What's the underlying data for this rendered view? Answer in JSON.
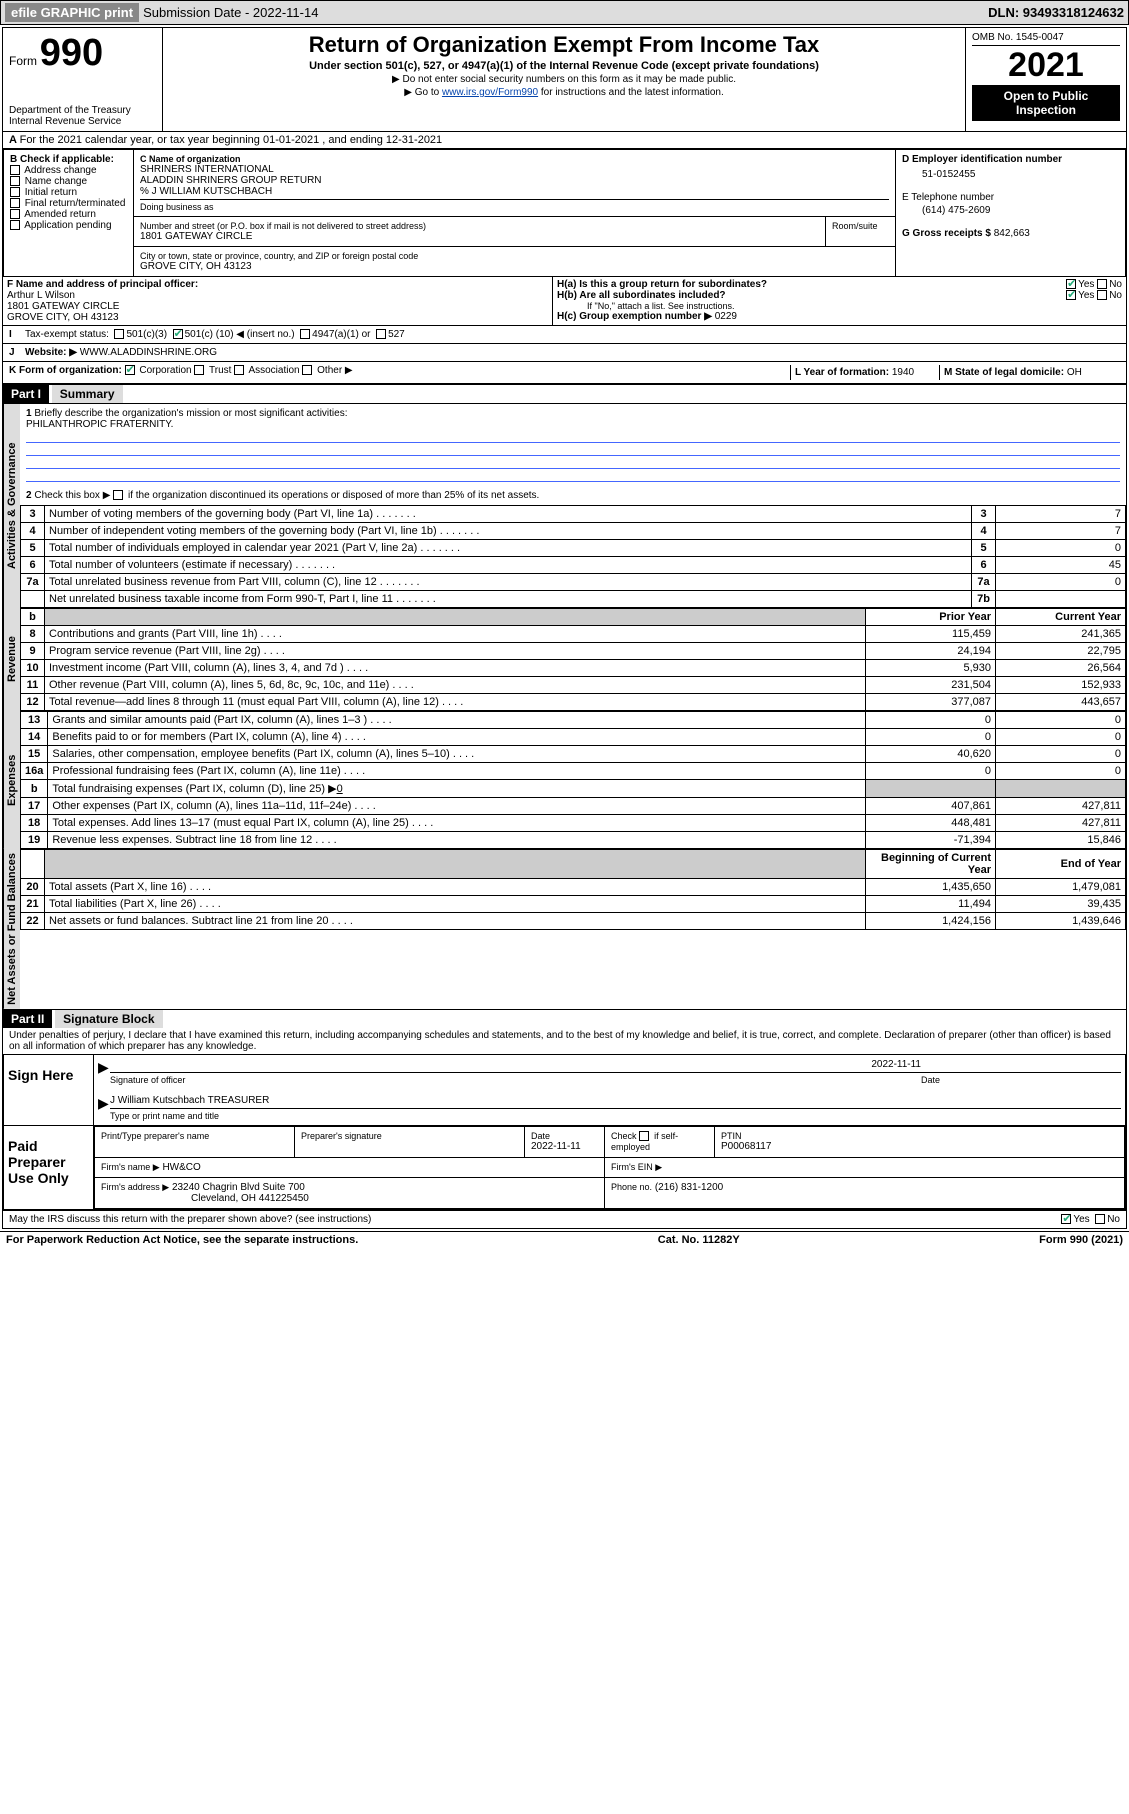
{
  "toolbar": {
    "efile_label": "efile GRAPHIC print",
    "sub_label": "Submission Date - 2022-11-14",
    "dln": "DLN: 93493318124632"
  },
  "header": {
    "form_label": "Form",
    "form_number": "990",
    "dept": "Department of the Treasury",
    "irs": "Internal Revenue Service",
    "title": "Return of Organization Exempt From Income Tax",
    "subtitle": "Under section 501(c), 527, or 4947(a)(1) of the Internal Revenue Code (except private foundations)",
    "note1": "▶ Do not enter social security numbers on this form as it may be made public.",
    "note2_pre": "▶ Go to ",
    "note2_link": "www.irs.gov/Form990",
    "note2_post": " for instructions and the latest information.",
    "omb": "OMB No. 1545-0047",
    "year": "2021",
    "open_pub": "Open to Public Inspection"
  },
  "sectionA": {
    "line": "For the 2021 calendar year, or tax year beginning 01-01-2021   , and ending 12-31-2021",
    "b_label": "B Check if applicable:",
    "b_opts": [
      "Address change",
      "Name change",
      "Initial return",
      "Final return/terminated",
      "Amended return",
      "Application pending"
    ],
    "c_label": "C Name of organization",
    "c_name1": "SHRINERS INTERNATIONAL",
    "c_name2": "ALADDIN SHRINERS GROUP RETURN",
    "c_name3": "% J WILLIAM KUTSCHBACH",
    "c_dba": "Doing business as",
    "c_addr_label": "Number and street (or P.O. box if mail is not delivered to street address)",
    "c_room": "Room/suite",
    "c_addr": "1801 GATEWAY CIRCLE",
    "c_city_label": "City or town, state or province, country, and ZIP or foreign postal code",
    "c_city": "GROVE CITY, OH  43123",
    "d_label": "D Employer identification number",
    "d_ein": "51-0152455",
    "e_label": "E Telephone number",
    "e_phone": "(614) 475-2609",
    "g_label": "G Gross receipts $",
    "g_amt": "842,663",
    "f_label": "F  Name and address of principal officer:",
    "f_name": "Arthur L Wilson",
    "f_addr1": "1801 GATEWAY CIRCLE",
    "f_addr2": "GROVE CITY, OH  43123",
    "ha_label": "H(a)  Is this a group return for subordinates?",
    "hb_label": "H(b)  Are all subordinates included?",
    "hb_note": "If \"No,\" attach a list. See instructions.",
    "hc_label": "H(c)  Group exemption number ▶",
    "hc_val": "0229",
    "yes": "Yes",
    "no": "No",
    "i_label": "Tax-exempt status:",
    "i_501c3": "501(c)(3)",
    "i_501c": "501(c) (",
    "i_501c_num": "10",
    "i_501c_post": ") ◀ (insert no.)",
    "i_4947": "4947(a)(1) or",
    "i_527": "527",
    "j_label": "Website: ▶",
    "j_val": "WWW.ALADDINSHRINE.ORG",
    "k_label": "K Form of organization:",
    "k_opts": [
      "Corporation",
      "Trust",
      "Association",
      "Other ▶"
    ],
    "l_label": "L Year of formation:",
    "l_val": "1940",
    "m_label": "M State of legal domicile:",
    "m_val": "OH"
  },
  "part1": {
    "part_label": "Part I",
    "part_title": "Summary",
    "tabs": {
      "gov": "Activities & Governance",
      "rev": "Revenue",
      "exp": "Expenses",
      "net": "Net Assets or Fund Balances"
    },
    "l1_label": "Briefly describe the organization's mission or most significant activities:",
    "l1_val": "PHILANTHROPIC FRATERNITY.",
    "l2_label": "Check this box ▶",
    "l2_post": " if the organization discontinued its operations or disposed of more than 25% of its net assets.",
    "rows_gov": [
      {
        "n": "3",
        "t": "Number of voting members of the governing body (Part VI, line 1a)",
        "box": "3",
        "v": "7"
      },
      {
        "n": "4",
        "t": "Number of independent voting members of the governing body (Part VI, line 1b)",
        "box": "4",
        "v": "7"
      },
      {
        "n": "5",
        "t": "Total number of individuals employed in calendar year 2021 (Part V, line 2a)",
        "box": "5",
        "v": "0"
      },
      {
        "n": "6",
        "t": "Total number of volunteers (estimate if necessary)",
        "box": "6",
        "v": "45"
      },
      {
        "n": "7a",
        "t": "Total unrelated business revenue from Part VIII, column (C), line 12",
        "box": "7a",
        "v": "0"
      },
      {
        "n": "",
        "t": "Net unrelated business taxable income from Form 990-T, Part I, line 11",
        "box": "7b",
        "v": ""
      }
    ],
    "hdr_b": "b",
    "hdr_prior": "Prior Year",
    "hdr_curr": "Current Year",
    "rows_rev": [
      {
        "n": "8",
        "t": "Contributions and grants (Part VIII, line 1h)",
        "p": "115,459",
        "c": "241,365"
      },
      {
        "n": "9",
        "t": "Program service revenue (Part VIII, line 2g)",
        "p": "24,194",
        "c": "22,795"
      },
      {
        "n": "10",
        "t": "Investment income (Part VIII, column (A), lines 3, 4, and 7d )",
        "p": "5,930",
        "c": "26,564"
      },
      {
        "n": "11",
        "t": "Other revenue (Part VIII, column (A), lines 5, 6d, 8c, 9c, 10c, and 11e)",
        "p": "231,504",
        "c": "152,933"
      },
      {
        "n": "12",
        "t": "Total revenue—add lines 8 through 11 (must equal Part VIII, column (A), line 12)",
        "p": "377,087",
        "c": "443,657"
      }
    ],
    "rows_exp": [
      {
        "n": "13",
        "t": "Grants and similar amounts paid (Part IX, column (A), lines 1–3 )",
        "p": "0",
        "c": "0"
      },
      {
        "n": "14",
        "t": "Benefits paid to or for members (Part IX, column (A), line 4)",
        "p": "0",
        "c": "0"
      },
      {
        "n": "15",
        "t": "Salaries, other compensation, employee benefits (Part IX, column (A), lines 5–10)",
        "p": "40,620",
        "c": "0"
      },
      {
        "n": "16a",
        "t": "Professional fundraising fees (Part IX, column (A), line 11e)",
        "p": "0",
        "c": "0"
      }
    ],
    "row16b_n": "b",
    "row16b_t": "Total fundraising expenses (Part IX, column (D), line 25) ▶",
    "row16b_v": "0",
    "rows_exp2": [
      {
        "n": "17",
        "t": "Other expenses (Part IX, column (A), lines 11a–11d, 11f–24e)",
        "p": "407,861",
        "c": "427,811"
      },
      {
        "n": "18",
        "t": "Total expenses. Add lines 13–17 (must equal Part IX, column (A), line 25)",
        "p": "448,481",
        "c": "427,811"
      },
      {
        "n": "19",
        "t": "Revenue less expenses. Subtract line 18 from line 12",
        "p": "-71,394",
        "c": "15,846"
      }
    ],
    "hdr_boy": "Beginning of Current Year",
    "hdr_eoy": "End of Year",
    "rows_net": [
      {
        "n": "20",
        "t": "Total assets (Part X, line 16)",
        "p": "1,435,650",
        "c": "1,479,081"
      },
      {
        "n": "21",
        "t": "Total liabilities (Part X, line 26)",
        "p": "11,494",
        "c": "39,435"
      },
      {
        "n": "22",
        "t": "Net assets or fund balances. Subtract line 21 from line 20",
        "p": "1,424,156",
        "c": "1,439,646"
      }
    ]
  },
  "part2": {
    "part_label": "Part II",
    "part_title": "Signature Block",
    "decl": "Under penalties of perjury, I declare that I have examined this return, including accompanying schedules and statements, and to the best of my knowledge and belief, it is true, correct, and complete. Declaration of preparer (other than officer) is based on all information of which preparer has any knowledge.",
    "sign_here": "Sign Here",
    "sig_officer": "Signature of officer",
    "sig_date": "Date",
    "sig_date_val": "2022-11-11",
    "officer_name": "J William Kutschbach  TREASURER",
    "type_name": "Type or print name and title",
    "paid_prep": "Paid Preparer Use Only",
    "pp_name": "Print/Type preparer's name",
    "pp_sig": "Preparer's signature",
    "pp_date": "Date",
    "pp_date_val": "2022-11-11",
    "pp_check": "Check",
    "pp_self": "if self-employed",
    "pp_ptin": "PTIN",
    "pp_ptin_val": "P00068117",
    "pp_firm": "Firm's name    ▶",
    "pp_firm_val": "HW&CO",
    "pp_ein": "Firm's EIN ▶",
    "pp_addr": "Firm's address ▶",
    "pp_addr_val1": "23240 Chagrin Blvd Suite 700",
    "pp_addr_val2": "Cleveland, OH  441225450",
    "pp_phone": "Phone no.",
    "pp_phone_val": "(216) 831-1200",
    "may_irs": "May the IRS discuss this return with the preparer shown above? (see instructions)"
  },
  "footer": {
    "pra": "For Paperwork Reduction Act Notice, see the separate instructions.",
    "cat": "Cat. No. 11282Y",
    "form": "Form 990 (2021)"
  }
}
